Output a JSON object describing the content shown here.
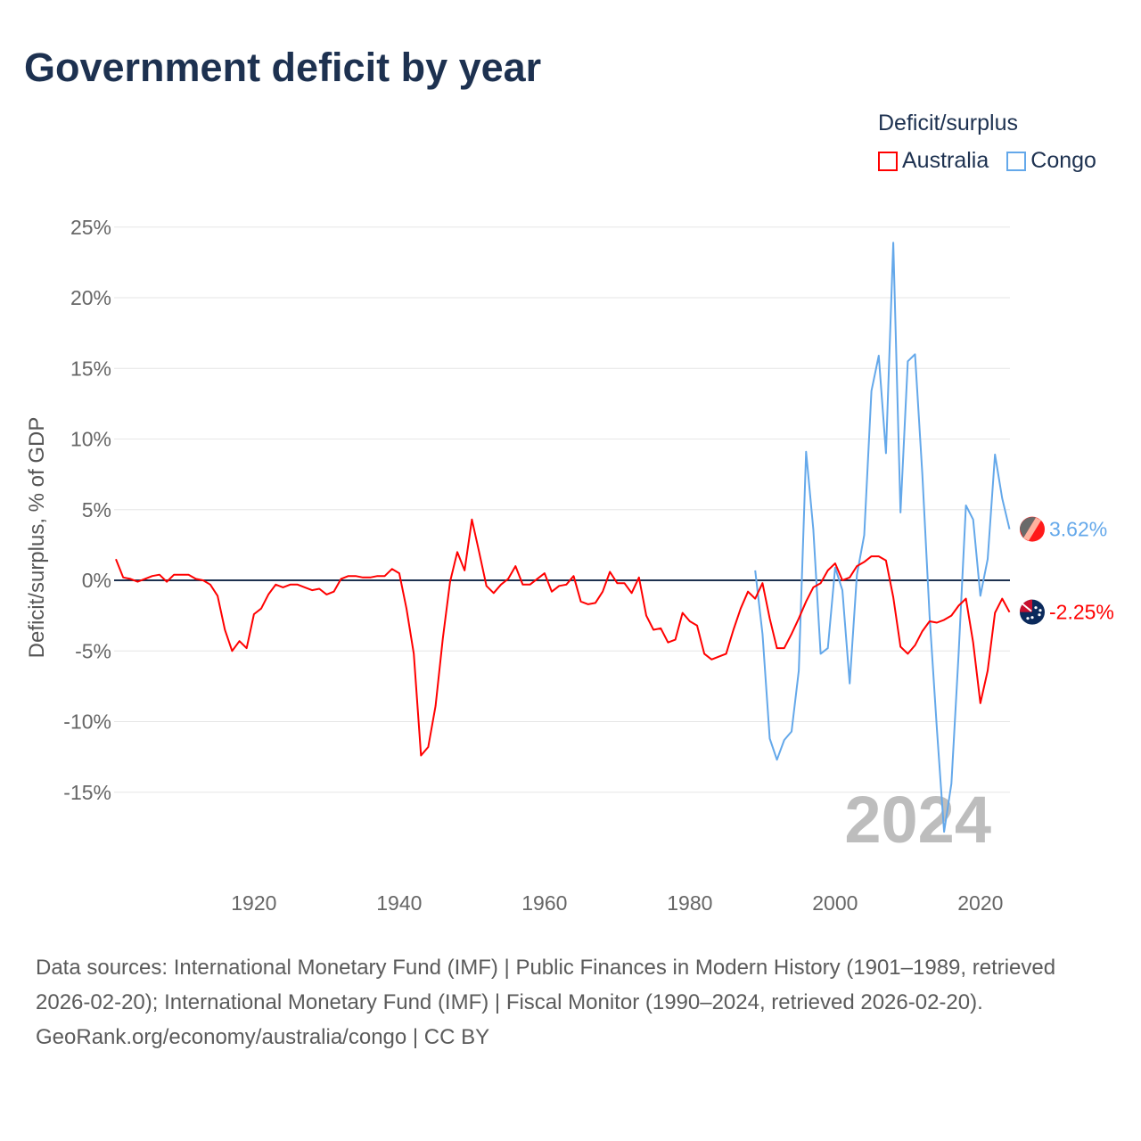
{
  "chart_data": {
    "type": "line",
    "title": "Government deficit by year",
    "ylabel": "Deficit/surplus, % of GDP",
    "xlabel": "",
    "ylim": [
      -20,
      26
    ],
    "xlim": [
      1901,
      2024
    ],
    "grid": true,
    "y_ticks": [
      {
        "value": 25,
        "label": "25%"
      },
      {
        "value": 20,
        "label": "20%"
      },
      {
        "value": 15,
        "label": "15%"
      },
      {
        "value": 10,
        "label": "10%"
      },
      {
        "value": 5,
        "label": "5%"
      },
      {
        "value": 0,
        "label": "0%"
      },
      {
        "value": -5,
        "label": "-5%"
      },
      {
        "value": -10,
        "label": "-10%"
      },
      {
        "value": -15,
        "label": "-15%"
      }
    ],
    "x_ticks": [
      {
        "value": 1920,
        "label": "1920"
      },
      {
        "value": 1940,
        "label": "1940"
      },
      {
        "value": 1960,
        "label": "1960"
      },
      {
        "value": 1980,
        "label": "1980"
      },
      {
        "value": 2000,
        "label": "2000"
      },
      {
        "value": 2020,
        "label": "2020"
      }
    ],
    "legend_title": "Deficit/surplus",
    "legend_position": "top-right",
    "year_watermark": "2024",
    "series": [
      {
        "name": "Australia",
        "color": "#ff0000",
        "end_label": "-2.25%",
        "start_year": 1901,
        "values": [
          1.5,
          0.2,
          0.1,
          -0.1,
          0.1,
          0.3,
          0.4,
          -0.1,
          0.4,
          0.4,
          0.4,
          0.1,
          0,
          -0.3,
          -1.1,
          -3.5,
          -5.0,
          -4.3,
          -4.8,
          -2.4,
          -2.0,
          -1.0,
          -0.3,
          -0.5,
          -0.3,
          -0.3,
          -0.5,
          -0.7,
          -0.6,
          -1.0,
          -0.8,
          0.1,
          0.3,
          0.3,
          0.2,
          0.2,
          0.3,
          0.3,
          0.8,
          0.5,
          -2.0,
          -5.2,
          -12.4,
          -11.8,
          -8.9,
          -4.1,
          -0.1,
          2.0,
          0.7,
          4.3,
          2.0,
          -0.4,
          -0.9,
          -0.3,
          0.1,
          1.0,
          -0.3,
          -0.3,
          0.1,
          0.5,
          -0.8,
          -0.4,
          -0.3,
          0.3,
          -1.5,
          -1.7,
          -1.6,
          -0.8,
          0.6,
          -0.2,
          -0.2,
          -0.9,
          0.2,
          -2.5,
          -3.5,
          -3.4,
          -4.4,
          -4.2,
          -2.3,
          -2.9,
          -3.2,
          -5.2,
          -5.6,
          -5.4,
          -5.2,
          -3.5,
          -2.0,
          -0.8,
          -1.3,
          -0.2,
          -2.7,
          -4.8,
          -4.8,
          -3.8,
          -2.7,
          -1.5,
          -0.5,
          -0.2,
          0.7,
          1.2,
          0,
          0.2,
          1.0,
          1.3,
          1.7,
          1.7,
          1.4,
          -1.2,
          -4.7,
          -5.2,
          -4.6,
          -3.6,
          -2.9,
          -3.0,
          -2.8,
          -2.5,
          -1.8,
          -1.3,
          -4.4,
          -8.7,
          -6.4,
          -2.3,
          -1.3,
          -2.25
        ]
      },
      {
        "name": "Congo",
        "color": "#64a8ea",
        "end_label": "3.62%",
        "start_year": 1989,
        "values": [
          0.7,
          -3.8,
          -11.2,
          -12.7,
          -11.3,
          -10.7,
          -6.4,
          9.1,
          3.6,
          -5.2,
          -4.8,
          0.9,
          -0.7,
          -7.3,
          0.4,
          3.2,
          13.4,
          15.9,
          9.0,
          23.9,
          4.8,
          15.5,
          16.0,
          7.5,
          -2.5,
          -10.5,
          -17.8,
          -14.4,
          -5.2,
          5.3,
          4.3,
          -1.1,
          1.5,
          8.9,
          5.8,
          3.62
        ]
      }
    ]
  },
  "footer": {
    "sources": "Data sources: International Monetary Fund (IMF) | Public Finances in Modern History (1901–1989, retrieved 2026-02-20); International Monetary Fund (IMF) | Fiscal Monitor (1990–2024, retrieved 2026-02-20).",
    "credit": "GeoRank.org/economy/australia/congo | CC BY"
  }
}
